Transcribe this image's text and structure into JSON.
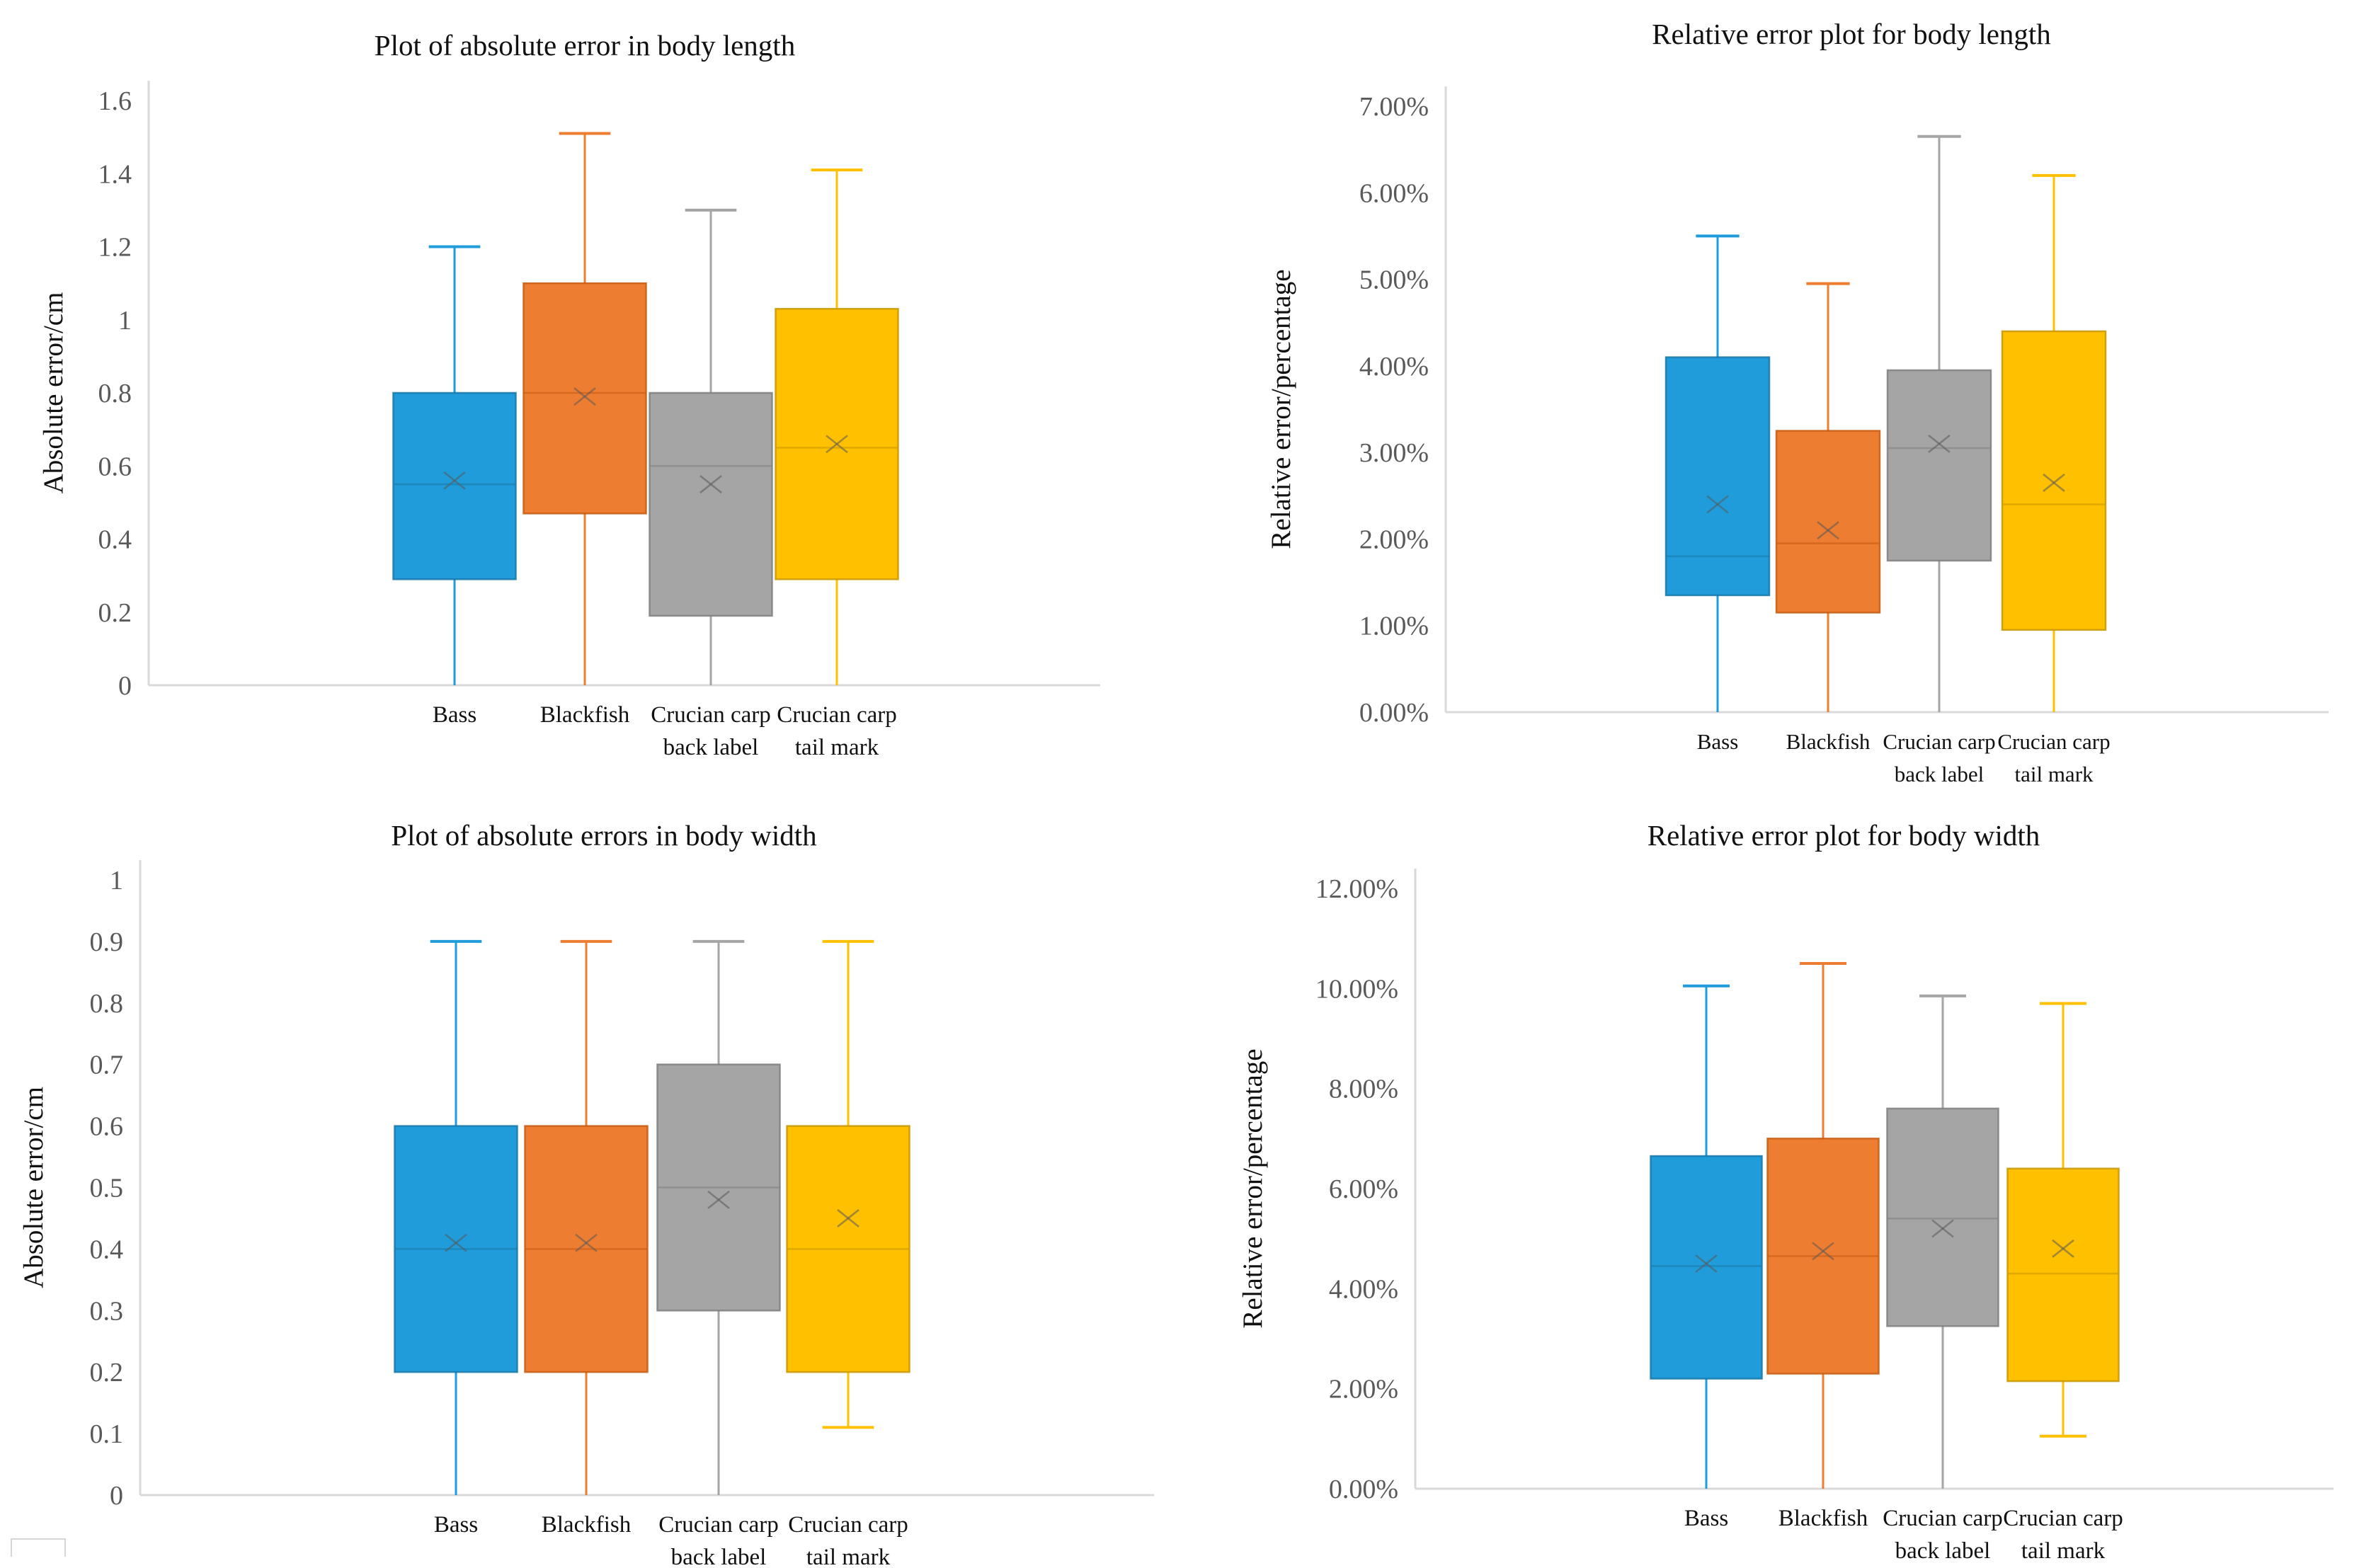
{
  "page": {
    "background": "#ffffff",
    "text_color": "#111111",
    "tick_color": "#595959",
    "axis_color": "#d9d9d9"
  },
  "chart_data": [
    {
      "type": "box",
      "title": "Plot of absolute error in body length",
      "ylabel": "Absolute error/cm",
      "xlabel": "",
      "ylim": [
        0,
        1.6
      ],
      "grid": false,
      "legend": "none",
      "yticks": [
        "1.6",
        "1.4",
        "1.2",
        "1",
        "0.8",
        "0.6",
        "0.4",
        "0.2",
        "0"
      ],
      "categories": [
        [
          "Bass"
        ],
        [
          "Blackfish"
        ],
        [
          "Crucian carp",
          "back label"
        ],
        [
          "Crucian carp",
          "tail mark"
        ]
      ],
      "boxes": [
        {
          "name": "Bass",
          "fill": "#1f9cd9",
          "stroke": "#1878a8",
          "min": 0,
          "q1": 0.29,
          "median": 0.55,
          "mean": 0.56,
          "q3": 0.8,
          "max": 1.2,
          "min_cap": false,
          "max_cap": true
        },
        {
          "name": "Blackfish",
          "fill": "#ed7d31",
          "stroke": "#c55a11",
          "min": 0,
          "q1": 0.47,
          "median": 0.8,
          "mean": 0.79,
          "q3": 1.1,
          "max": 1.51,
          "min_cap": false,
          "max_cap": true
        },
        {
          "name": "Crucian carp back label",
          "fill": "#a5a5a5",
          "stroke": "#7f7f7f",
          "min": 0,
          "q1": 0.19,
          "median": 0.6,
          "mean": 0.55,
          "q3": 0.8,
          "max": 1.3,
          "min_cap": false,
          "max_cap": true
        },
        {
          "name": "Crucian carp tail mark",
          "fill": "#ffc000",
          "stroke": "#c89600",
          "min": 0,
          "q1": 0.29,
          "median": 0.65,
          "mean": 0.66,
          "q3": 1.03,
          "max": 1.41,
          "min_cap": false,
          "max_cap": true
        }
      ]
    },
    {
      "type": "box",
      "title": "Relative error plot for body length",
      "ylabel": "Relative error/percentage",
      "xlabel": "",
      "ylim": [
        0,
        7
      ],
      "grid": false,
      "legend": "none",
      "yticks": [
        "7.00%",
        "6.00%",
        "5.00%",
        "4.00%",
        "3.00%",
        "2.00%",
        "1.00%",
        "0.00%"
      ],
      "categories": [
        [
          "Bass"
        ],
        [
          "Blackfish"
        ],
        [
          "Crucian carp",
          "back label"
        ],
        [
          "Crucian carp",
          "tail mark"
        ]
      ],
      "boxes": [
        {
          "name": "Bass",
          "fill": "#1f9cd9",
          "stroke": "#1878a8",
          "min": 0,
          "q1": 1.35,
          "median": 1.8,
          "mean": 2.4,
          "q3": 4.1,
          "max": 5.5,
          "min_cap": false,
          "max_cap": true
        },
        {
          "name": "Blackfish",
          "fill": "#ed7d31",
          "stroke": "#c55a11",
          "min": 0,
          "q1": 1.15,
          "median": 1.95,
          "mean": 2.1,
          "q3": 3.25,
          "max": 4.95,
          "min_cap": false,
          "max_cap": true
        },
        {
          "name": "Crucian carp back label",
          "fill": "#a5a5a5",
          "stroke": "#7f7f7f",
          "min": 0,
          "q1": 1.75,
          "median": 3.05,
          "mean": 3.1,
          "q3": 3.95,
          "max": 6.65,
          "min_cap": false,
          "max_cap": true
        },
        {
          "name": "Crucian carp tail mark",
          "fill": "#ffc000",
          "stroke": "#c89600",
          "min": 0,
          "q1": 0.95,
          "median": 2.4,
          "mean": 2.65,
          "q3": 4.4,
          "max": 6.2,
          "min_cap": false,
          "max_cap": true
        }
      ]
    },
    {
      "type": "box",
      "title": "Plot of absolute errors in body width",
      "ylabel": "Absolute error/cm",
      "xlabel": "",
      "ylim": [
        0,
        1
      ],
      "grid": false,
      "legend": "none",
      "yticks": [
        "1",
        "0.9",
        "0.8",
        "0.7",
        "0.6",
        "0.5",
        "0.4",
        "0.3",
        "0.2",
        "0.1",
        "0"
      ],
      "categories": [
        [
          "Bass"
        ],
        [
          "Blackfish"
        ],
        [
          "Crucian carp",
          "back label"
        ],
        [
          "Crucian carp",
          "tail mark"
        ]
      ],
      "boxes": [
        {
          "name": "Bass",
          "fill": "#1f9cd9",
          "stroke": "#1878a8",
          "min": 0,
          "q1": 0.2,
          "median": 0.4,
          "mean": 0.41,
          "q3": 0.6,
          "max": 0.9,
          "min_cap": false,
          "max_cap": true
        },
        {
          "name": "Blackfish",
          "fill": "#ed7d31",
          "stroke": "#c55a11",
          "min": 0,
          "q1": 0.2,
          "median": 0.4,
          "mean": 0.41,
          "q3": 0.6,
          "max": 0.9,
          "min_cap": false,
          "max_cap": true
        },
        {
          "name": "Crucian carp back label",
          "fill": "#a5a5a5",
          "stroke": "#7f7f7f",
          "min": 0,
          "q1": 0.3,
          "median": 0.5,
          "mean": 0.48,
          "q3": 0.7,
          "max": 0.9,
          "min_cap": false,
          "max_cap": true
        },
        {
          "name": "Crucian carp tail mark",
          "fill": "#ffc000",
          "stroke": "#c89600",
          "min": 0.11,
          "q1": 0.2,
          "median": 0.4,
          "mean": 0.45,
          "q3": 0.6,
          "max": 0.9,
          "min_cap": true,
          "max_cap": true
        }
      ]
    },
    {
      "type": "box",
      "title": "Relative error plot for body width",
      "ylabel": "Relative error/percentage",
      "xlabel": "",
      "ylim": [
        0,
        12
      ],
      "grid": false,
      "legend": "none",
      "yticks": [
        "12.00%",
        "10.00%",
        "8.00%",
        "6.00%",
        "4.00%",
        "2.00%",
        "0.00%"
      ],
      "categories": [
        [
          "Bass"
        ],
        [
          "Blackfish"
        ],
        [
          "Crucian carp",
          "back label"
        ],
        [
          "Crucian carp",
          "tail mark"
        ]
      ],
      "boxes": [
        {
          "name": "Bass",
          "fill": "#1f9cd9",
          "stroke": "#1878a8",
          "min": 0,
          "q1": 2.2,
          "median": 4.45,
          "mean": 4.5,
          "q3": 6.65,
          "max": 10.05,
          "min_cap": false,
          "max_cap": true
        },
        {
          "name": "Blackfish",
          "fill": "#ed7d31",
          "stroke": "#c55a11",
          "min": 0,
          "q1": 2.3,
          "median": 4.65,
          "mean": 4.75,
          "q3": 7.0,
          "max": 10.5,
          "min_cap": false,
          "max_cap": true
        },
        {
          "name": "Crucian carp back label",
          "fill": "#a5a5a5",
          "stroke": "#7f7f7f",
          "min": 0,
          "q1": 3.25,
          "median": 5.4,
          "mean": 5.2,
          "q3": 7.6,
          "max": 9.85,
          "min_cap": false,
          "max_cap": true
        },
        {
          "name": "Crucian carp tail mark",
          "fill": "#ffc000",
          "stroke": "#c89600",
          "min": 1.05,
          "q1": 2.15,
          "median": 4.3,
          "mean": 4.8,
          "q3": 6.4,
          "max": 9.7,
          "min_cap": true,
          "max_cap": true
        }
      ]
    }
  ]
}
